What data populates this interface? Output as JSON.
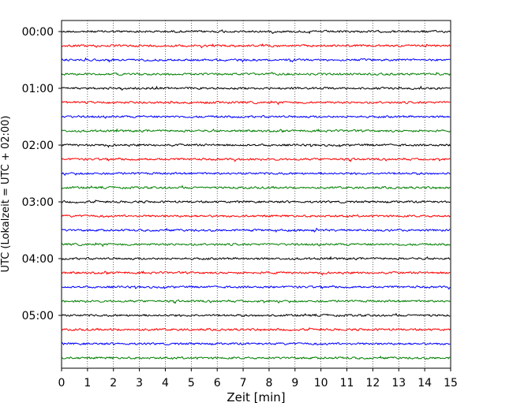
{
  "chart_data": {
    "type": "line",
    "title": "",
    "xlabel": "Zeit  [min]",
    "ylabel": "UTC (Lokalzeit = UTC + 02:00)",
    "xlim": [
      0,
      15
    ],
    "x_ticks": [
      "0",
      "1",
      "2",
      "3",
      "4",
      "5",
      "6",
      "7",
      "8",
      "9",
      "10",
      "11",
      "12",
      "13",
      "14",
      "15"
    ],
    "y_tick_labels": [
      "00:00",
      "01:00",
      "02:00",
      "03:00",
      "04:00",
      "05:00"
    ],
    "trace_interval_min": 15,
    "trace_count": 24,
    "trace_colors": [
      "#000000",
      "#ff0000",
      "#0000ff",
      "#008000"
    ],
    "grid": "vertical dotted at each minute",
    "series_kind": "seismogram helicorder traces"
  }
}
